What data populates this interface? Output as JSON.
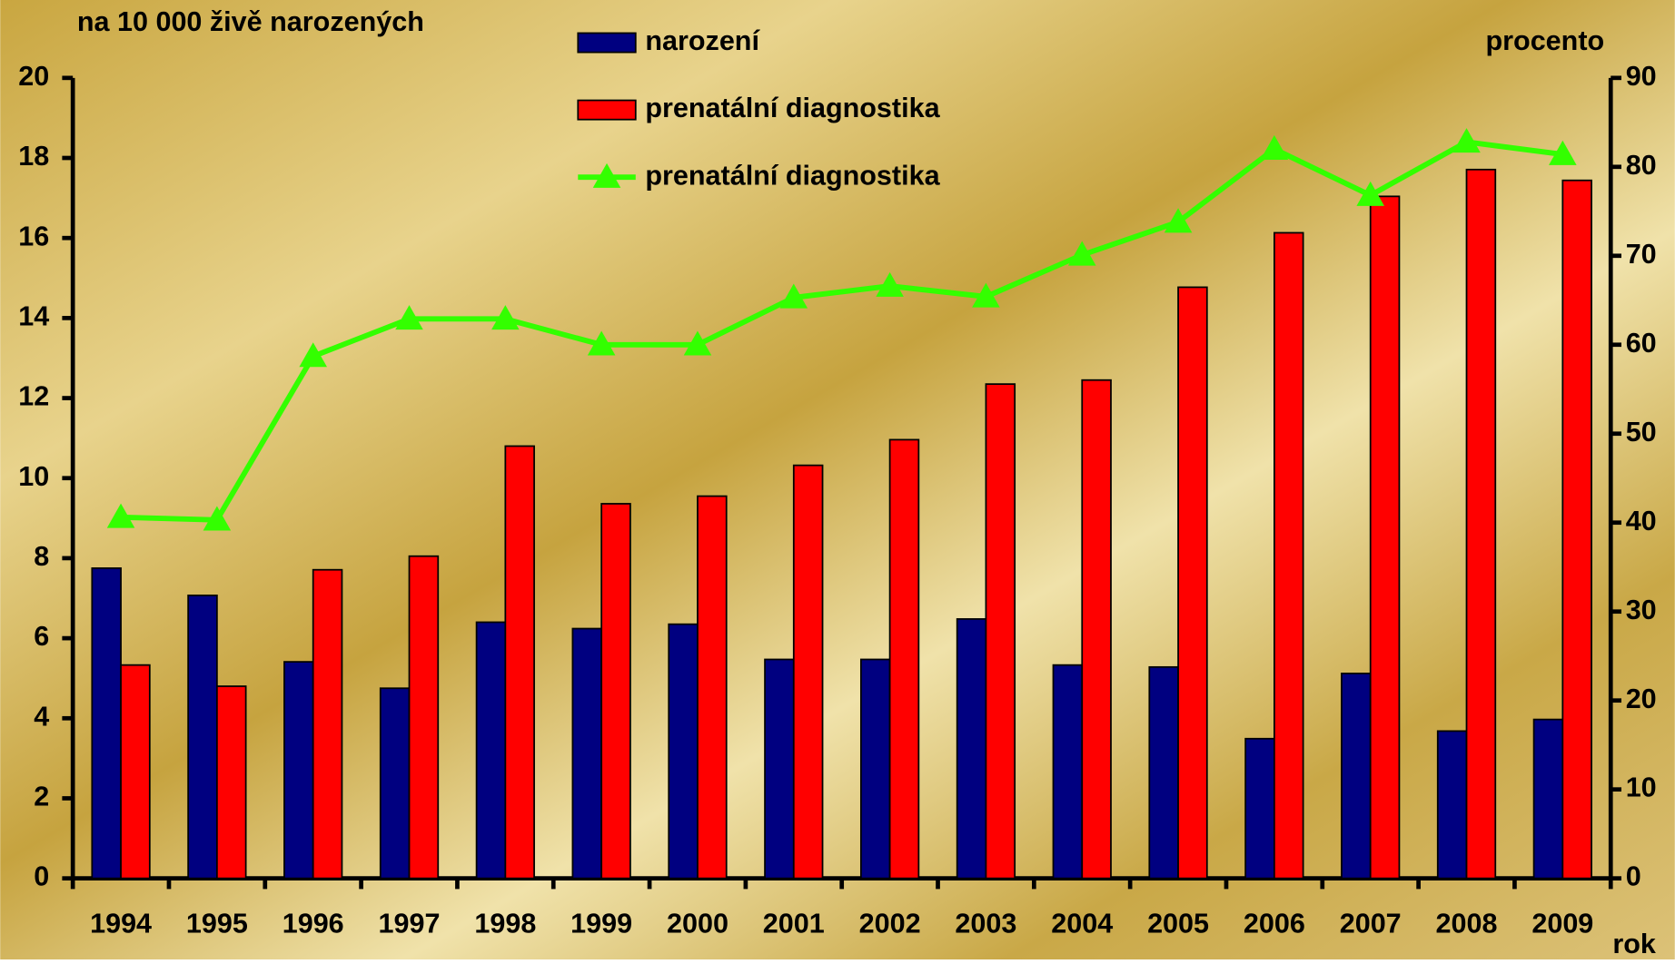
{
  "chart_data": {
    "type": "bar_line",
    "y_label": "na 10 000 živě narozených",
    "y2_label": "procento",
    "x_label": "rok",
    "categories": [
      "1994",
      "1995",
      "1996",
      "1997",
      "1998",
      "1999",
      "2000",
      "2001",
      "2002",
      "2003",
      "2004",
      "2005",
      "2006",
      "2007",
      "2008",
      "2009"
    ],
    "series": [
      {
        "name": "narození",
        "type": "bar",
        "color": "#000080",
        "values": [
          7.75,
          7.07,
          5.41,
          4.75,
          6.4,
          6.24,
          6.35,
          5.47,
          5.47,
          6.48,
          5.33,
          5.28,
          3.49,
          5.12,
          3.68,
          3.97
        ]
      },
      {
        "name": "prenatální diagnostika",
        "type": "bar",
        "color": "#ff0000",
        "values": [
          5.33,
          4.8,
          7.71,
          8.05,
          10.8,
          9.36,
          9.55,
          10.32,
          10.96,
          12.35,
          12.45,
          14.77,
          16.13,
          17.04,
          17.71,
          17.44
        ]
      },
      {
        "name": "prenatální diagnostika",
        "type": "line",
        "axis": "y2",
        "color": "#33ff00",
        "values": [
          40.6,
          40.3,
          58.7,
          62.9,
          62.9,
          60,
          60,
          65.3,
          66.6,
          65.4,
          70.1,
          73.8,
          82,
          76.8,
          82.8,
          81.4
        ]
      }
    ],
    "ylim": [
      0,
      20
    ],
    "yticks": [
      0,
      2,
      4,
      6,
      8,
      10,
      12,
      14,
      16,
      18,
      20
    ],
    "y2lim": [
      0,
      90
    ],
    "y2ticks": [
      0,
      10,
      20,
      30,
      40,
      50,
      60,
      70,
      80,
      90
    ],
    "legend": "top"
  }
}
